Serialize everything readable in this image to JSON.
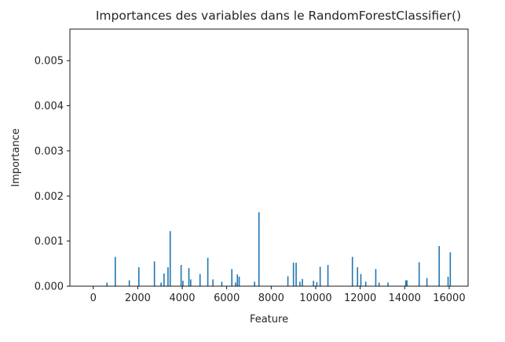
{
  "chart_data": {
    "type": "bar",
    "title": "Importances des variables dans le RandomForestClassifier()",
    "xlabel": "Feature",
    "ylabel": "Importance",
    "xlim": [
      -1050,
      16850
    ],
    "ylim": [
      0,
      0.0057
    ],
    "xticks": [
      0,
      2000,
      4000,
      6000,
      8000,
      10000,
      12000,
      14000,
      16000
    ],
    "yticks": [
      0.0,
      0.001,
      0.002,
      0.003,
      0.004,
      0.005
    ],
    "ytick_labels": [
      "0.000",
      "0.001",
      "0.002",
      "0.003",
      "0.004",
      "0.005"
    ],
    "grid": false,
    "bar_color": "#1f77b4",
    "series": [
      {
        "x": [
          620,
          990,
          1620,
          2050,
          2750,
          3050,
          3180,
          3360,
          3460,
          3950,
          4030,
          4300,
          4380,
          4800,
          5150,
          5380,
          5780,
          6230,
          6400,
          6480,
          6560,
          7250,
          7450,
          8750,
          9000,
          9120,
          9290,
          9400,
          9900,
          10050,
          10200,
          10550,
          11650,
          11880,
          12030,
          12250,
          12700,
          12850,
          13250,
          14050,
          14100,
          14650,
          15000,
          15550,
          15950,
          16050
        ],
        "values": [
          8e-05,
          0.00065,
          0.00013,
          0.00042,
          0.00055,
          8e-05,
          0.00028,
          0.00042,
          0.00122,
          0.00047,
          0.00012,
          0.0004,
          0.00015,
          0.00027,
          0.00063,
          0.00015,
          0.0001,
          0.00038,
          8e-05,
          0.00026,
          0.00021,
          0.0001,
          0.00164,
          0.00022,
          0.00052,
          0.00052,
          0.0001,
          0.00016,
          0.00012,
          9e-05,
          0.00043,
          0.00047,
          0.00065,
          0.00042,
          0.00027,
          0.0001,
          0.00038,
          8e-05,
          8e-05,
          0.00013,
          0.00013,
          0.00053,
          0.00018,
          0.00089,
          0.00021,
          0.00075
        ]
      }
    ]
  }
}
